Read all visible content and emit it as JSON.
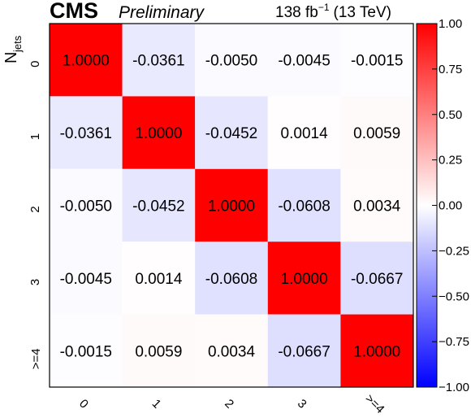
{
  "header": {
    "experiment": "CMS",
    "status": "Preliminary",
    "luminosity": "138 fb",
    "lumi_exponent": "−1",
    "energy": "(13 TeV)"
  },
  "chart_data": {
    "type": "heatmap",
    "ylabel": "N",
    "ylabel_subscript": "jets",
    "x_categories": [
      "0",
      "1",
      "2",
      "3",
      ">=4"
    ],
    "y_categories": [
      "0",
      "1",
      "2",
      "3",
      ">=4"
    ],
    "values": [
      [
        1.0,
        -0.0361,
        -0.005,
        -0.0045,
        -0.0015
      ],
      [
        -0.0361,
        1.0,
        -0.0452,
        0.0014,
        0.0059
      ],
      [
        -0.005,
        -0.0452,
        1.0,
        -0.0608,
        0.0034
      ],
      [
        -0.0045,
        0.0014,
        -0.0608,
        1.0,
        -0.0667
      ],
      [
        -0.0015,
        0.0059,
        0.0034,
        -0.0667,
        1.0
      ]
    ],
    "zlim": [
      -1,
      1
    ],
    "colorbar_ticks": [
      "1.00",
      "0.75",
      "0.50",
      "0.25",
      "0.00",
      "−0.25",
      "−0.50",
      "−0.75",
      "−1.00"
    ],
    "colormap": {
      "min": "#0000ff",
      "mid": "#ffffff",
      "max": "#ff0000"
    },
    "grid": false,
    "legend": "colorbar-right"
  }
}
